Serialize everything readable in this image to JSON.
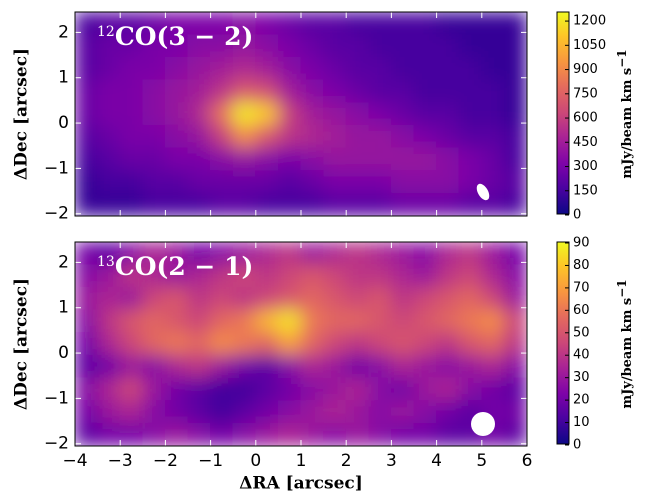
{
  "chart_data": [
    {
      "type": "heatmap",
      "title": "CO(3 − 2)",
      "title_superscript": "12",
      "colormap": "plasma",
      "clim": [
        0,
        1250
      ],
      "colorbar_label": "mJy/beam km s",
      "colorbar_label_superscript": "−1",
      "colorbar_ticks": [
        0,
        150,
        300,
        450,
        600,
        750,
        900,
        1050,
        1200
      ],
      "ylabel": "ΔDec [arcsec]",
      "xlim": [
        -4,
        6
      ],
      "ylim": [
        -2.05,
        2.45
      ],
      "yticks": [
        {
          "value": -2,
          "label": "−2"
        },
        {
          "value": -1,
          "label": "−1"
        },
        0,
        1,
        2
      ],
      "x": [
        -3.75,
        -3.25,
        -2.75,
        -2.25,
        -1.75,
        -1.25,
        -0.75,
        -0.25,
        0.25,
        0.75,
        1.25,
        1.75,
        2.25,
        2.75,
        3.25,
        3.75,
        4.25,
        4.75,
        5.25,
        5.75
      ],
      "y": [
        2.2,
        1.7,
        1.2,
        0.7,
        0.2,
        -0.3,
        -0.8,
        -1.3,
        -1.8
      ],
      "z": [
        [
          150,
          200,
          200,
          250,
          300,
          300,
          300,
          350,
          300,
          250,
          200,
          200,
          150,
          150,
          150,
          150,
          100,
          100,
          100,
          100
        ],
        [
          200,
          250,
          250,
          300,
          300,
          350,
          350,
          400,
          350,
          300,
          250,
          200,
          200,
          150,
          150,
          150,
          150,
          100,
          100,
          100
        ],
        [
          200,
          250,
          300,
          300,
          350,
          400,
          450,
          500,
          450,
          350,
          300,
          250,
          200,
          200,
          150,
          150,
          150,
          150,
          100,
          100
        ],
        [
          250,
          300,
          300,
          350,
          400,
          450,
          550,
          700,
          650,
          450,
          350,
          300,
          250,
          200,
          200,
          150,
          150,
          150,
          150,
          100
        ],
        [
          250,
          300,
          300,
          350,
          400,
          500,
          800,
          1200,
          1100,
          600,
          450,
          400,
          350,
          300,
          250,
          200,
          200,
          150,
          150,
          100
        ],
        [
          200,
          250,
          300,
          300,
          350,
          400,
          600,
          900,
          700,
          550,
          500,
          450,
          400,
          400,
          350,
          300,
          250,
          200,
          200,
          150
        ],
        [
          150,
          200,
          250,
          250,
          300,
          300,
          350,
          400,
          350,
          300,
          350,
          400,
          400,
          400,
          400,
          400,
          350,
          300,
          250,
          150
        ],
        [
          100,
          150,
          150,
          200,
          200,
          250,
          250,
          250,
          250,
          200,
          250,
          300,
          300,
          300,
          350,
          350,
          350,
          300,
          250,
          200
        ],
        [
          100,
          100,
          100,
          150,
          150,
          150,
          200,
          200,
          150,
          150,
          150,
          200,
          200,
          200,
          250,
          250,
          250,
          200,
          200,
          150
        ]
      ]
    },
    {
      "type": "heatmap",
      "title": "CO(2 − 1)",
      "title_superscript": "13",
      "colormap": "plasma",
      "clim": [
        0,
        90
      ],
      "colorbar_label": "mJy/beam km s",
      "colorbar_label_superscript": "−1",
      "colorbar_ticks": [
        0,
        10,
        20,
        30,
        40,
        50,
        60,
        70,
        80,
        90
      ],
      "ylabel": "ΔDec [arcsec]",
      "xlabel": "ΔRA [arcsec]",
      "xlim": [
        -4,
        6
      ],
      "ylim": [
        -2.05,
        2.45
      ],
      "xticks": [
        {
          "value": -4,
          "label": "−4"
        },
        {
          "value": -3,
          "label": "−3"
        },
        {
          "value": -2,
          "label": "−2"
        },
        {
          "value": -1,
          "label": "−1"
        },
        0,
        1,
        2,
        3,
        4,
        5,
        6
      ],
      "yticks": [
        {
          "value": -2,
          "label": "−2"
        },
        {
          "value": -1,
          "label": "−1"
        },
        0,
        1,
        2
      ],
      "x": [
        -3.75,
        -3.25,
        -2.75,
        -2.25,
        -1.75,
        -1.25,
        -0.75,
        -0.25,
        0.25,
        0.75,
        1.25,
        1.75,
        2.25,
        2.75,
        3.25,
        3.75,
        4.25,
        4.75,
        5.25,
        5.75
      ],
      "y": [
        2.2,
        1.7,
        1.2,
        0.7,
        0.2,
        -0.3,
        -0.8,
        -1.3,
        -1.8
      ],
      "z": [
        [
          20,
          15,
          25,
          35,
          30,
          20,
          25,
          30,
          35,
          40,
          30,
          35,
          40,
          35,
          30,
          25,
          35,
          40,
          30,
          20
        ],
        [
          25,
          30,
          40,
          35,
          30,
          35,
          40,
          45,
          40,
          45,
          50,
          45,
          40,
          40,
          35,
          30,
          40,
          45,
          35,
          25
        ],
        [
          30,
          35,
          30,
          45,
          50,
          40,
          45,
          40,
          45,
          50,
          55,
          50,
          45,
          50,
          40,
          45,
          50,
          55,
          45,
          30
        ],
        [
          25,
          40,
          50,
          55,
          50,
          45,
          55,
          60,
          75,
          85,
          60,
          55,
          55,
          50,
          45,
          50,
          55,
          60,
          65,
          45
        ],
        [
          20,
          35,
          45,
          55,
          60,
          55,
          65,
          60,
          55,
          70,
          55,
          45,
          40,
          45,
          50,
          45,
          40,
          50,
          55,
          40
        ],
        [
          15,
          20,
          30,
          25,
          35,
          40,
          30,
          20,
          15,
          25,
          35,
          30,
          20,
          25,
          35,
          30,
          25,
          30,
          35,
          25
        ],
        [
          25,
          35,
          45,
          30,
          20,
          15,
          10,
          10,
          15,
          20,
          25,
          30,
          35,
          25,
          20,
          30,
          35,
          25,
          20,
          15
        ],
        [
          20,
          30,
          35,
          25,
          20,
          15,
          10,
          15,
          20,
          25,
          30,
          35,
          30,
          25,
          30,
          25,
          20,
          15,
          20,
          20
        ],
        [
          15,
          20,
          20,
          25,
          30,
          25,
          20,
          25,
          30,
          35,
          30,
          25,
          30,
          25,
          20,
          20,
          15,
          15,
          20,
          15
        ]
      ]
    }
  ]
}
